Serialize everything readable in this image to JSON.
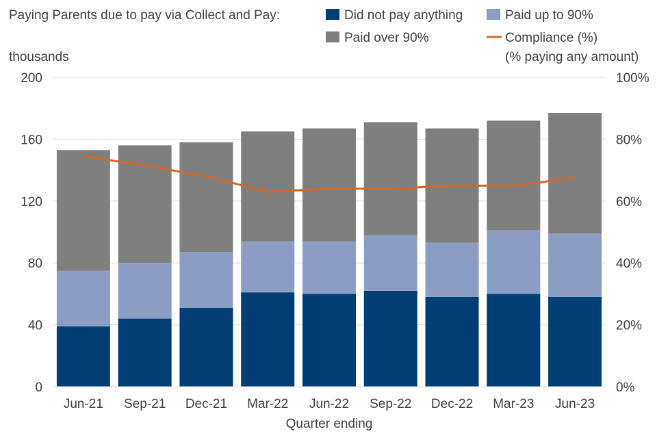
{
  "chart_data": {
    "type": "bar",
    "stacked": true,
    "legend_title": "Paying Parents due to pay via Collect and Pay:",
    "categories": [
      "Jun-21",
      "Sep-21",
      "Dec-21",
      "Mar-22",
      "Jun-22",
      "Sep-22",
      "Dec-22",
      "Mar-23",
      "Jun-23"
    ],
    "series": [
      {
        "name": "Did not pay anything",
        "color": "#003E74",
        "axis": "left",
        "values": [
          39,
          44,
          51,
          61,
          60,
          62,
          58,
          60,
          58
        ]
      },
      {
        "name": "Paid up to 90%",
        "color": "#8C9DC3",
        "axis": "left",
        "values": [
          36,
          36,
          36,
          33,
          34,
          36,
          35,
          41,
          41
        ]
      },
      {
        "name": "Paid over 90%",
        "color": "#7F7F7F",
        "axis": "left",
        "values": [
          78,
          76,
          71,
          71,
          73,
          73,
          74,
          71,
          78
        ]
      }
    ],
    "line_series": {
      "name": "Compliance (%)",
      "name_note": "(% paying any amount)",
      "color": "#D4682A",
      "axis": "right",
      "values": [
        74.5,
        71.5,
        68,
        63,
        64,
        64,
        65,
        65,
        67.5
      ]
    },
    "ylabel_left": "thousands",
    "xlabel": "Quarter ending",
    "ylim_left": [
      0,
      200
    ],
    "yticks_left": [
      "0",
      "40",
      "80",
      "120",
      "160",
      "200"
    ],
    "ylim_right": [
      0,
      100
    ],
    "yticks_right": [
      "0%",
      "20%",
      "40%",
      "60%",
      "80%",
      "100%"
    ],
    "grid": true,
    "legend_position": "top"
  }
}
